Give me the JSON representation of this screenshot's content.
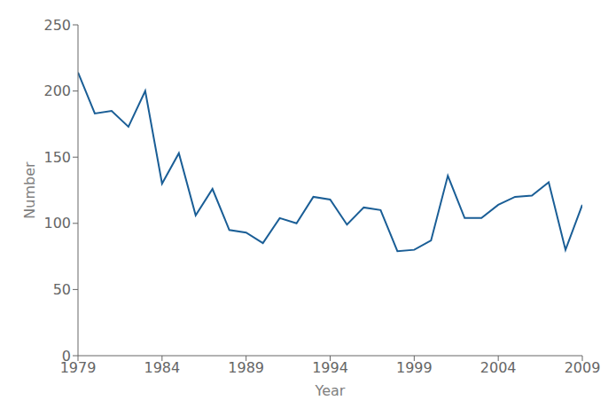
{
  "chart_data": {
    "type": "line",
    "xlabel": "Year",
    "ylabel": "Number",
    "x": [
      1979,
      1980,
      1981,
      1982,
      1983,
      1984,
      1985,
      1986,
      1987,
      1988,
      1989,
      1990,
      1991,
      1992,
      1993,
      1994,
      1995,
      1996,
      1997,
      1998,
      1999,
      2000,
      2001,
      2002,
      2003,
      2004,
      2005,
      2006,
      2007,
      2008,
      2009
    ],
    "values": [
      214,
      183,
      185,
      173,
      200,
      130,
      153,
      106,
      126,
      95,
      93,
      85,
      104,
      100,
      120,
      118,
      99,
      112,
      110,
      79,
      80,
      87,
      136,
      104,
      104,
      114,
      120,
      121,
      131,
      80,
      114
    ],
    "color": "#1a5e96",
    "xlim": [
      1979,
      2009
    ],
    "ylim": [
      0,
      250
    ],
    "xticks": [
      1979,
      1984,
      1989,
      1994,
      1999,
      2004,
      2009
    ],
    "yticks": [
      0,
      50,
      100,
      150,
      200,
      250
    ],
    "grid": false
  }
}
